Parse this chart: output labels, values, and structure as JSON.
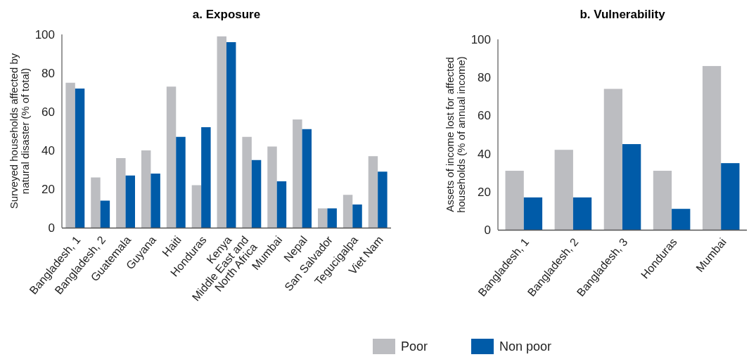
{
  "chart_data": [
    {
      "type": "bar",
      "title": "a. Exposure",
      "ylabel": "Surveyed households affected by natural disaster (% of total)",
      "categories": [
        "Bangladesh, 1",
        "Bangladesh, 2",
        "Guatemala",
        "Guyana",
        "Haiti",
        "Honduras",
        "Kenya",
        "Middle East and North Africa",
        "Mumbai",
        "Nepal",
        "San Salvador",
        "Tegucigalpa",
        "Viet Nam"
      ],
      "series": [
        {
          "color": "#bcbdc1",
          "values": [
            75,
            26,
            36,
            40,
            73,
            22,
            99,
            47,
            42,
            56,
            10,
            17,
            37
          ]
        },
        {
          "color": "#005ba8",
          "values": [
            72,
            14,
            27,
            28,
            47,
            52,
            96,
            35,
            24,
            51,
            10,
            12,
            29
          ]
        }
      ],
      "ylim": [
        0,
        100
      ],
      "yticks": [
        0,
        20,
        40,
        60,
        80,
        100
      ],
      "grid": false,
      "legend": false
    },
    {
      "type": "bar",
      "title": "b. Vulnerability",
      "ylabel": "Assets of income lost for affected households (% of annual income)",
      "categories": [
        "Bangladesh, 1",
        "Bangladesh, 2",
        "Bangladesh, 3",
        "Honduras",
        "Mumbai"
      ],
      "series": [
        {
          "name": "Poor",
          "color": "#bcbdc1",
          "values": [
            31,
            42,
            74,
            31,
            86
          ]
        },
        {
          "name": "Non poor",
          "color": "#005ba8",
          "values": [
            17,
            17,
            45,
            11,
            35
          ]
        }
      ],
      "ylim": [
        0,
        100
      ],
      "yticks": [
        0,
        20,
        40,
        60,
        80,
        100
      ],
      "grid": false,
      "legend": "bottom"
    }
  ]
}
